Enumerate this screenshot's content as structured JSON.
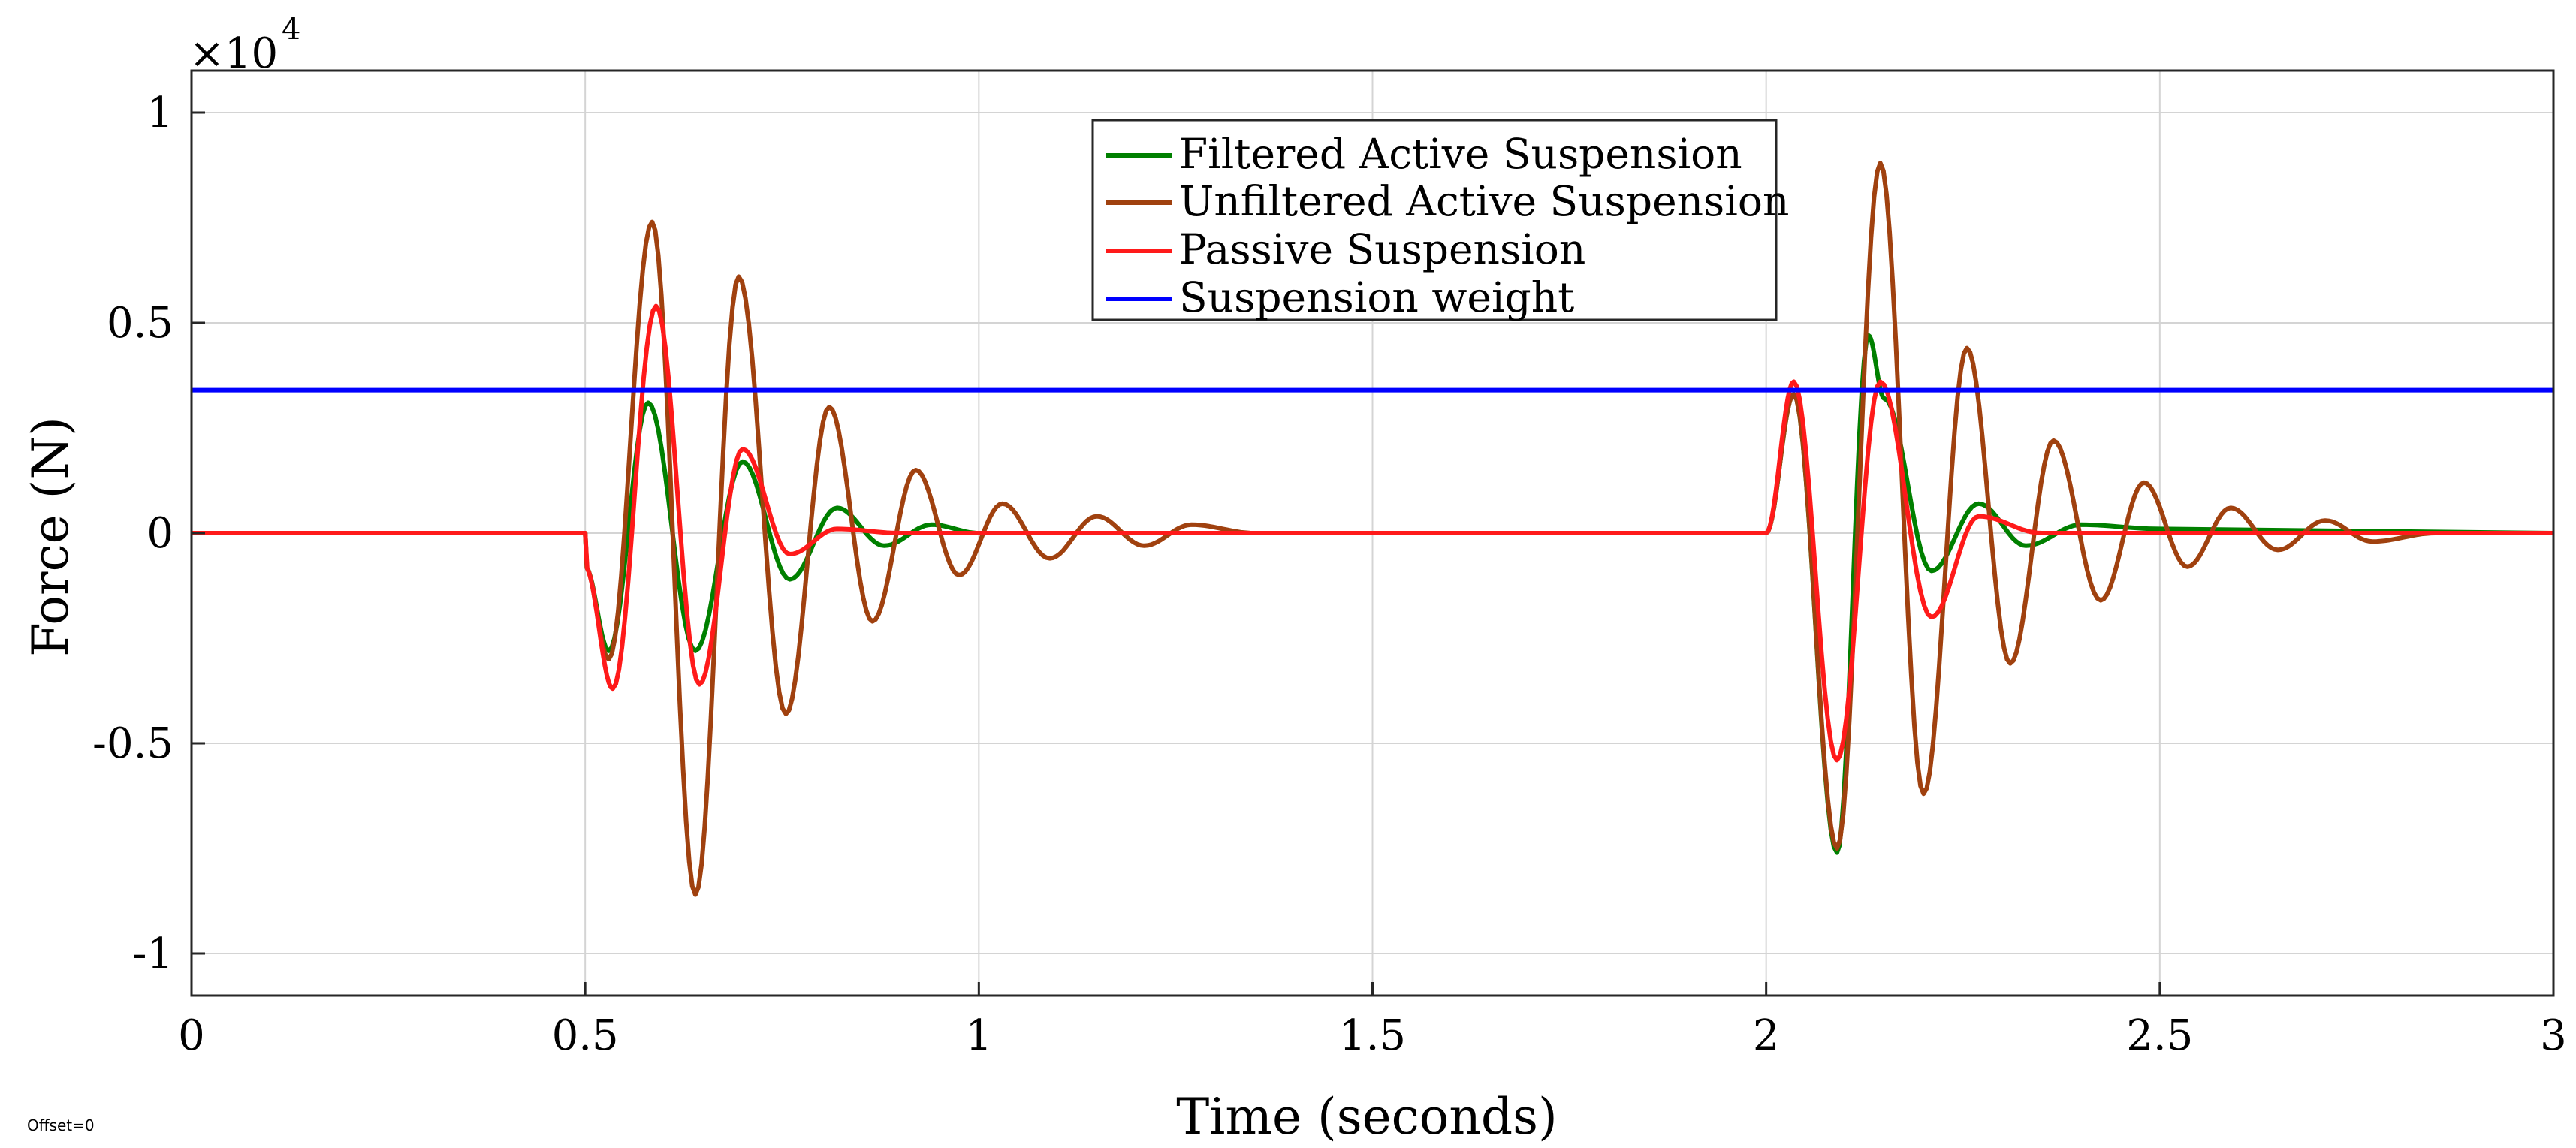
{
  "chart_data": {
    "type": "line",
    "title": "",
    "xlabel": "Time (seconds)",
    "ylabel": "Force (N)",
    "y_exponent_label": "×10",
    "y_exponent_power": "4",
    "offset_text": "Offset=0",
    "xlim": [
      0,
      3
    ],
    "ylim": [
      -1.1,
      1.1
    ],
    "grid": true,
    "legend_position": "top-center",
    "x_ticks": [
      0,
      0.5,
      1,
      1.5,
      2,
      2.5,
      3
    ],
    "x_tick_labels": [
      "0",
      "0.5",
      "1",
      "1.5",
      "2",
      "2.5",
      "3"
    ],
    "y_ticks": [
      -1,
      -0.5,
      0,
      0.5,
      1
    ],
    "y_tick_labels": [
      "-1",
      "-0.5",
      "0",
      "0.5",
      "1"
    ],
    "events": [
      {
        "t0": 0.5,
        "y0": -0.08
      },
      {
        "t0": 2.0,
        "y0": 0.0
      }
    ],
    "series": [
      {
        "name": "Filtered Active Suspension",
        "color": "#008000",
        "kind": "oscillation",
        "events": [
          {
            "peaks": [
              [
                0.53,
                -0.28
              ],
              [
                0.58,
                0.31
              ],
              [
                0.64,
                -0.28
              ],
              [
                0.7,
                0.17
              ],
              [
                0.76,
                -0.11
              ],
              [
                0.82,
                0.06
              ],
              [
                0.88,
                -0.03
              ],
              [
                0.94,
                0.02
              ],
              [
                1.0,
                0.0
              ]
            ]
          },
          {
            "peaks": [
              [
                2.035,
                0.33
              ],
              [
                2.09,
                -0.76
              ],
              [
                2.13,
                0.47
              ],
              [
                2.15,
                0.32
              ],
              [
                2.21,
                -0.09
              ],
              [
                2.27,
                0.07
              ],
              [
                2.33,
                -0.03
              ],
              [
                2.4,
                0.02
              ],
              [
                2.5,
                0.01
              ]
            ]
          }
        ]
      },
      {
        "name": "Unfiltered Active Suspension",
        "color": "#a0410f",
        "kind": "oscillation",
        "events": [
          {
            "peaks": [
              [
                0.53,
                -0.3
              ],
              [
                0.585,
                0.74
              ],
              [
                0.64,
                -0.86
              ],
              [
                0.695,
                0.61
              ],
              [
                0.755,
                -0.43
              ],
              [
                0.81,
                0.3
              ],
              [
                0.865,
                -0.21
              ],
              [
                0.92,
                0.15
              ],
              [
                0.975,
                -0.1
              ],
              [
                1.03,
                0.07
              ],
              [
                1.09,
                -0.06
              ],
              [
                1.15,
                0.04
              ],
              [
                1.21,
                -0.03
              ],
              [
                1.27,
                0.02
              ],
              [
                1.35,
                0.0
              ]
            ]
          },
          {
            "peaks": [
              [
                2.035,
                0.33
              ],
              [
                2.09,
                -0.75
              ],
              [
                2.145,
                0.88
              ],
              [
                2.2,
                -0.62
              ],
              [
                2.255,
                0.44
              ],
              [
                2.31,
                -0.31
              ],
              [
                2.365,
                0.22
              ],
              [
                2.425,
                -0.16
              ],
              [
                2.48,
                0.12
              ],
              [
                2.535,
                -0.08
              ],
              [
                2.59,
                0.06
              ],
              [
                2.65,
                -0.04
              ],
              [
                2.71,
                0.03
              ],
              [
                2.77,
                -0.02
              ],
              [
                2.85,
                0.0
              ]
            ]
          }
        ]
      },
      {
        "name": "Passive Suspension",
        "color": "#ff1a1a",
        "kind": "oscillation",
        "events": [
          {
            "peaks": [
              [
                0.535,
                -0.37
              ],
              [
                0.59,
                0.54
              ],
              [
                0.645,
                -0.36
              ],
              [
                0.7,
                0.2
              ],
              [
                0.76,
                -0.05
              ],
              [
                0.82,
                0.01
              ],
              [
                0.9,
                0.0
              ]
            ]
          },
          {
            "peaks": [
              [
                2.035,
                0.36
              ],
              [
                2.09,
                -0.54
              ],
              [
                2.145,
                0.36
              ],
              [
                2.21,
                -0.2
              ],
              [
                2.27,
                0.04
              ],
              [
                2.35,
                0.0
              ]
            ]
          }
        ]
      },
      {
        "name": "Suspension weight",
        "color": "#0000ff",
        "kind": "constant",
        "value": 0.34
      }
    ]
  }
}
